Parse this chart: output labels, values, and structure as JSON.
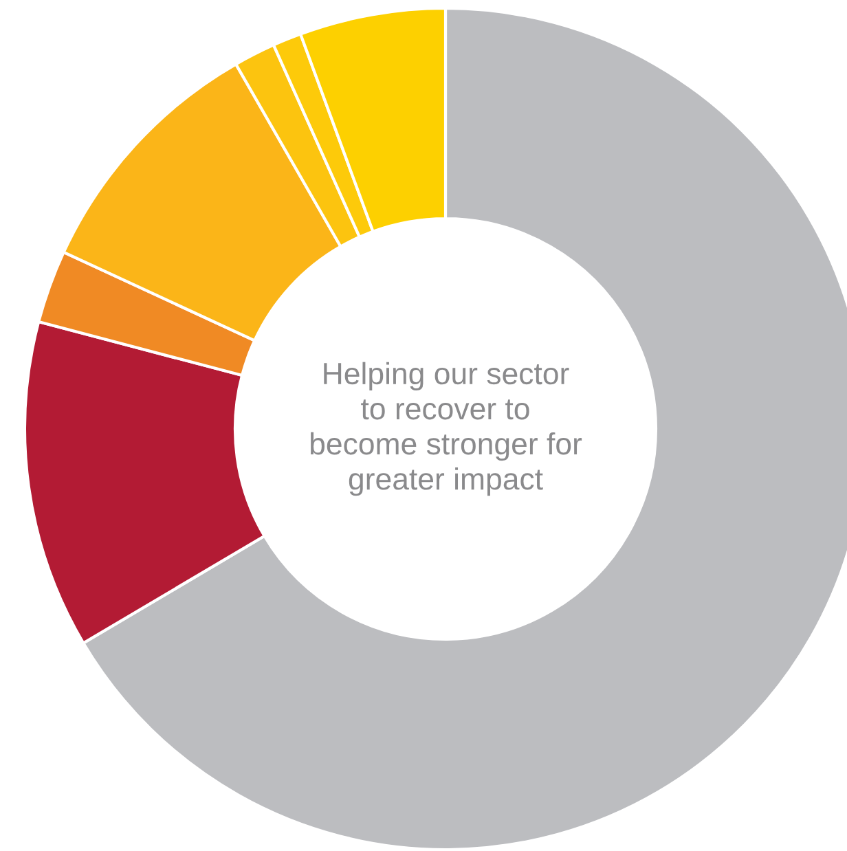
{
  "chart_data": {
    "type": "donut",
    "categories": [
      null,
      null,
      null,
      null,
      null,
      null,
      null
    ],
    "values": [
      66.5,
      12.6,
      2.8,
      9.8,
      1.6,
      1.1,
      5.6
    ],
    "colors": [
      "#bcbdc0",
      "#b31b34",
      "#f08a24",
      "#fbb518",
      "#fcc40f",
      "#fdca0a",
      "#fdd000"
    ],
    "annotations": [
      "Helping our sector\nto recover to\nbecome stronger for\ngreater impact"
    ]
  }
}
